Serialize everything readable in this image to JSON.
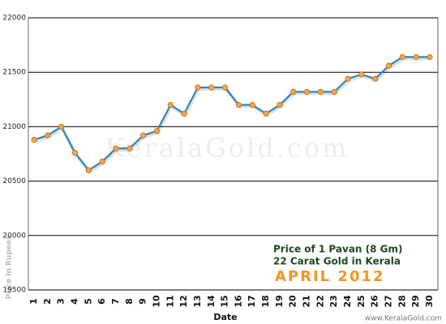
{
  "chart_data": {
    "type": "line",
    "x_label": "Date",
    "y_label": "Price in Rupees",
    "annotations": [
      "Price of 1 Pavan (8 Gm)",
      "22 Carat Gold in Kerala",
      "APRIL 2012"
    ],
    "watermark": "KeralaGold.com",
    "footer": "www.KeralaGold.com",
    "categories": [
      "1",
      "2",
      "3",
      "4",
      "5",
      "6",
      "7",
      "8",
      "9",
      "10",
      "11",
      "12",
      "13",
      "14",
      "15",
      "16",
      "17",
      "18",
      "19",
      "20",
      "21",
      "22",
      "23",
      "24",
      "25",
      "26",
      "27",
      "28",
      "29",
      "30"
    ],
    "series": [
      {
        "name": "Price",
        "color": "#2f86b5",
        "values": [
          20880,
          20920,
          21000,
          20760,
          20600,
          20680,
          20800,
          20800,
          20920,
          20960,
          21200,
          21120,
          21360,
          21360,
          21360,
          21200,
          21200,
          21120,
          21200,
          21320,
          21320,
          21320,
          21320,
          21440,
          21480,
          21440,
          21560,
          21640,
          21640,
          21640
        ]
      }
    ],
    "marker_color": "#f6a54a",
    "ylim": [
      19500,
      22000
    ],
    "yticks": [
      19500,
      20000,
      20500,
      21000,
      21500,
      22000
    ],
    "grid": true
  }
}
